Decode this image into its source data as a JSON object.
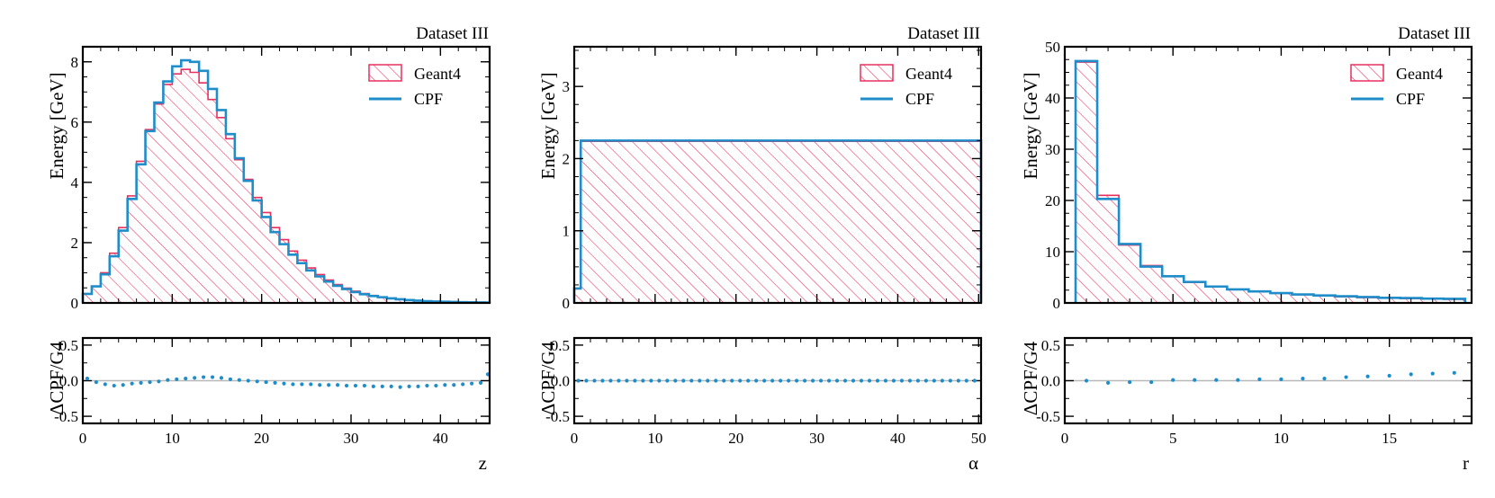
{
  "colors": {
    "geant4": "#e8305f",
    "cpf": "#1f8dc9",
    "zero_line": "#b8b8b8"
  },
  "chart_data": [
    {
      "type": "histogram",
      "title": "Dataset III",
      "xlabel": "z",
      "ylabel": "Energy [GeV]",
      "ratio_ylabel": "ΔCPF/G4",
      "xlim": [
        0,
        45.5
      ],
      "ylim": [
        0,
        8.5
      ],
      "ratio_ylim": [
        -0.6,
        0.6
      ],
      "xticks": [
        0,
        10,
        20,
        30,
        40
      ],
      "yticks": [
        0,
        2,
        4,
        6,
        8
      ],
      "ratio_yticks": [
        0.5,
        0.0,
        -0.5
      ],
      "ratio_ytick_labels": [
        "0.5",
        "0.0",
        "-0.5"
      ],
      "legend": [
        "Geant4",
        "CPF"
      ],
      "legend_position": "top-right",
      "bin_edges": [
        0,
        1,
        2,
        3,
        4,
        5,
        6,
        7,
        8,
        9,
        10,
        11,
        12,
        13,
        14,
        15,
        16,
        17,
        18,
        19,
        20,
        21,
        22,
        23,
        24,
        25,
        26,
        27,
        28,
        29,
        30,
        31,
        32,
        33,
        34,
        35,
        36,
        37,
        38,
        39,
        40,
        41,
        42,
        43,
        44,
        45,
        45.5
      ],
      "geant4": [
        0.3,
        0.55,
        1.0,
        1.65,
        2.5,
        3.55,
        4.7,
        5.75,
        6.6,
        7.25,
        7.6,
        7.75,
        7.65,
        7.3,
        6.75,
        6.15,
        5.45,
        4.75,
        4.1,
        3.5,
        3.0,
        2.5,
        2.1,
        1.72,
        1.42,
        1.16,
        0.94,
        0.76,
        0.61,
        0.49,
        0.39,
        0.31,
        0.25,
        0.2,
        0.16,
        0.13,
        0.1,
        0.08,
        0.065,
        0.052,
        0.042,
        0.034,
        0.028,
        0.022,
        0.018,
        0.015
      ],
      "cpf": [
        0.3,
        0.55,
        0.95,
        1.55,
        2.4,
        3.45,
        4.6,
        5.7,
        6.65,
        7.35,
        7.85,
        8.05,
        8.0,
        7.7,
        7.1,
        6.4,
        5.6,
        4.8,
        4.05,
        3.4,
        2.85,
        2.35,
        1.95,
        1.6,
        1.32,
        1.08,
        0.88,
        0.71,
        0.57,
        0.46,
        0.36,
        0.29,
        0.23,
        0.19,
        0.15,
        0.12,
        0.095,
        0.075,
        0.06,
        0.048,
        0.039,
        0.031,
        0.025,
        0.02,
        0.017,
        0.014
      ],
      "ratio_x": [
        0.5,
        1.5,
        2.5,
        3.5,
        4.5,
        5.5,
        6.5,
        7.5,
        8.5,
        9.5,
        10.5,
        11.5,
        12.5,
        13.5,
        14.5,
        15.5,
        16.5,
        17.5,
        18.5,
        19.5,
        20.5,
        21.5,
        22.5,
        23.5,
        24.5,
        25.5,
        26.5,
        27.5,
        28.5,
        29.5,
        30.5,
        31.5,
        32.5,
        33.5,
        34.5,
        35.5,
        36.5,
        37.5,
        38.5,
        39.5,
        40.5,
        41.5,
        42.5,
        43.5,
        44.5,
        45.3
      ],
      "ratio": [
        0.03,
        -0.02,
        -0.05,
        -0.07,
        -0.06,
        -0.04,
        -0.03,
        -0.02,
        -0.01,
        0.01,
        0.02,
        0.03,
        0.04,
        0.05,
        0.05,
        0.04,
        0.02,
        0.01,
        0.0,
        -0.01,
        -0.02,
        -0.03,
        -0.04,
        -0.05,
        -0.05,
        -0.05,
        -0.06,
        -0.06,
        -0.06,
        -0.07,
        -0.07,
        -0.07,
        -0.08,
        -0.08,
        -0.08,
        -0.09,
        -0.08,
        -0.08,
        -0.07,
        -0.07,
        -0.06,
        -0.06,
        -0.05,
        -0.04,
        -0.03,
        0.09
      ]
    },
    {
      "type": "histogram",
      "title": "Dataset III",
      "xlabel": "α",
      "ylabel": "Energy [GeV]",
      "ratio_ylabel": "ΔCPF/G4",
      "xlim": [
        0,
        50.3
      ],
      "ylim": [
        0,
        3.55
      ],
      "ratio_ylim": [
        -0.6,
        0.6
      ],
      "xticks": [
        0,
        10,
        20,
        30,
        40,
        50
      ],
      "yticks": [
        0,
        1,
        2,
        3
      ],
      "ratio_yticks": [
        0.5,
        0.0,
        -0.5
      ],
      "ratio_ytick_labels": [
        "0.5",
        "0.0",
        "-0.5"
      ],
      "legend": [
        "Geant4",
        "CPF"
      ],
      "legend_position": "top-right",
      "bin_edges": [
        0,
        0.8,
        50.3
      ],
      "geant4": [
        0.2,
        2.24
      ],
      "cpf": [
        0.2,
        2.25
      ],
      "ratio_x": [
        0.5,
        1.5,
        2.5,
        3.5,
        4.5,
        5.5,
        6.5,
        7.5,
        8.5,
        9.5,
        10.5,
        11.5,
        12.5,
        13.5,
        14.5,
        15.5,
        16.5,
        17.5,
        18.5,
        19.5,
        20.5,
        21.5,
        22.5,
        23.5,
        24.5,
        25.5,
        26.5,
        27.5,
        28.5,
        29.5,
        30.5,
        31.5,
        32.5,
        33.5,
        34.5,
        35.5,
        36.5,
        37.5,
        38.5,
        39.5,
        40.5,
        41.5,
        42.5,
        43.5,
        44.5,
        45.5,
        46.5,
        47.5,
        48.5,
        49.5
      ],
      "ratio": [
        0.0,
        0.0,
        0.0,
        0.0,
        0.0,
        0.0,
        0.0,
        0.0,
        0.0,
        0.0,
        0.0,
        0.0,
        0.0,
        0.0,
        0.0,
        0.0,
        0.0,
        0.0,
        0.0,
        0.0,
        0.0,
        0.0,
        0.0,
        0.0,
        0.0,
        0.0,
        0.0,
        0.0,
        0.0,
        0.0,
        0.0,
        0.0,
        0.0,
        0.0,
        0.0,
        0.0,
        0.0,
        0.0,
        0.0,
        0.0,
        0.0,
        0.0,
        0.0,
        0.0,
        0.0,
        0.0,
        0.0,
        0.0,
        0.0,
        0.0
      ]
    },
    {
      "type": "histogram",
      "title": "Dataset III",
      "xlabel": "r",
      "ylabel": "Energy [GeV]",
      "ratio_ylabel": "ΔCPF/G4",
      "xlim": [
        0,
        18.8
      ],
      "ylim": [
        0,
        50
      ],
      "ratio_ylim": [
        -0.6,
        0.6
      ],
      "xticks": [
        0,
        5,
        10,
        15
      ],
      "yticks": [
        0,
        10,
        20,
        30,
        40,
        50
      ],
      "ratio_yticks": [
        0.5,
        0.0,
        -0.5
      ],
      "ratio_ytick_labels": [
        "0.5",
        "0.0",
        "-0.5"
      ],
      "legend": [
        "Geant4",
        "CPF"
      ],
      "legend_position": "top-right",
      "bin_edges": [
        0.5,
        1.5,
        2.5,
        3.5,
        4.5,
        5.5,
        6.5,
        7.5,
        8.5,
        9.5,
        10.5,
        11.5,
        12.5,
        13.5,
        14.5,
        15.5,
        16.5,
        17.5,
        18.5
      ],
      "geant4": [
        47.0,
        21.0,
        11.3,
        7.3,
        5.2,
        4.0,
        3.2,
        2.6,
        2.2,
        1.9,
        1.6,
        1.4,
        1.2,
        1.05,
        0.95,
        0.85,
        0.75,
        0.7
      ],
      "cpf": [
        47.2,
        20.3,
        11.5,
        7.1,
        5.2,
        4.1,
        3.2,
        2.65,
        2.25,
        1.92,
        1.65,
        1.45,
        1.3,
        1.15,
        1.0,
        0.95,
        0.85,
        0.8
      ],
      "ratio_x": [
        1,
        2,
        3,
        4,
        5,
        6,
        7,
        8,
        9,
        10,
        11,
        12,
        13,
        14,
        15,
        16,
        17,
        18
      ],
      "ratio": [
        0.0,
        -0.03,
        -0.02,
        -0.02,
        0.01,
        0.01,
        0.01,
        0.01,
        0.02,
        0.02,
        0.03,
        0.03,
        0.05,
        0.06,
        0.07,
        0.09,
        0.1,
        0.11
      ]
    }
  ]
}
